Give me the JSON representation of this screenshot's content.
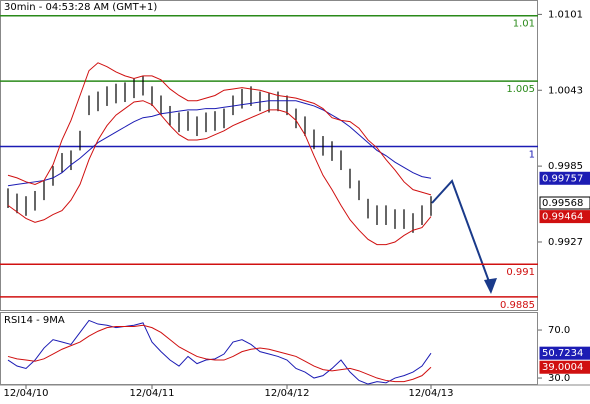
{
  "chart_data": [
    {
      "type": "hilo",
      "title": "30min - 04:53:28 AM (GMT+1)",
      "bar_color": "#000000",
      "ylim": [
        0.9875,
        1.0112
      ],
      "yticks": [
        1.0101,
        1.0043,
        0.9985,
        0.9927
      ],
      "high": [
        0.9968,
        0.9964,
        0.9962,
        0.9966,
        0.9974,
        0.9985,
        0.9995,
        0.9997,
        1.0012,
        1.0039,
        1.0042,
        1.0046,
        1.0048,
        1.0049,
        1.0052,
        1.0054,
        1.0046,
        1.0039,
        1.0031,
        1.0026,
        1.0027,
        1.0023,
        1.0026,
        1.0027,
        1.0029,
        1.0039,
        1.0044,
        1.0046,
        1.0042,
        1.0041,
        1.0042,
        1.0039,
        1.0029,
        1.0023,
        1.0013,
        1.0008,
        1.0004,
        0.9997,
        0.9983,
        0.9974,
        0.996,
        0.9955,
        0.9955,
        0.9952,
        0.9952,
        0.9949,
        0.9955,
        0.9962
      ],
      "low": [
        0.9953,
        0.9949,
        0.9947,
        0.9951,
        0.9959,
        0.997,
        0.998,
        0.9982,
        0.9997,
        1.0024,
        1.0027,
        1.0031,
        1.0033,
        1.0034,
        1.0037,
        1.0039,
        1.0031,
        1.0024,
        1.0016,
        1.0011,
        1.0012,
        1.0008,
        1.0011,
        1.0012,
        1.0014,
        1.0024,
        1.0029,
        1.0031,
        1.0027,
        1.0026,
        1.0027,
        1.0024,
        1.0014,
        1.0008,
        0.9998,
        0.9993,
        0.9989,
        0.9982,
        0.9968,
        0.9959,
        0.9945,
        0.994,
        0.994,
        0.9937,
        0.9937,
        0.9934,
        0.994,
        0.9947
      ],
      "last": 0.99568,
      "overlays": [
        {
          "color": "#1c1cb4",
          "label_fill": "#1c1cb4",
          "values": [
            0.997,
            0.9971,
            0.9972,
            0.9973,
            0.9974,
            0.9976,
            0.998,
            0.9986,
            0.9991,
            0.9997,
            1.0003,
            1.0007,
            1.0011,
            1.0015,
            1.0019,
            1.0022,
            1.0023,
            1.0025,
            1.0026,
            1.0027,
            1.0028,
            1.0028,
            1.0029,
            1.0029,
            1.003,
            1.0031,
            1.0032,
            1.0033,
            1.0034,
            1.0035,
            1.0035,
            1.0035,
            1.0035,
            1.0033,
            1.0031,
            1.0028,
            1.0024,
            1.002,
            1.0015,
            1.0009,
            1.0003,
            0.9997,
            0.9993,
            0.9988,
            0.9984,
            0.998,
            0.9977,
            0.99757
          ]
        },
        {
          "color": "#d01010",
          "values": [
            0.9978,
            0.9976,
            0.9973,
            0.9971,
            0.9974,
            0.9986,
            1.0005,
            1.002,
            1.0039,
            1.0058,
            1.0064,
            1.0061,
            1.0057,
            1.0054,
            1.0052,
            1.0054,
            1.0054,
            1.0051,
            1.0044,
            1.0039,
            1.0035,
            1.0035,
            1.0037,
            1.0039,
            1.0043,
            1.0044,
            1.0045,
            1.0044,
            1.0043,
            1.0041,
            1.0039,
            1.0038,
            1.0037,
            1.0035,
            1.0033,
            1.0029,
            1.0022,
            1.002,
            1.0019,
            1.0014,
            1.0005,
            0.9999,
            0.999,
            0.9982,
            0.9973,
            0.9967,
            0.9965,
            0.9963
          ]
        },
        {
          "color": "#d01010",
          "label_fill": "#d01010",
          "values": [
            0.9955,
            0.995,
            0.9945,
            0.9942,
            0.9944,
            0.9948,
            0.9951,
            0.9959,
            0.9971,
            0.999,
            1.0005,
            1.0016,
            1.0024,
            1.0029,
            1.0034,
            1.0035,
            1.0032,
            1.0024,
            1.0016,
            1.0009,
            1.0005,
            1.0005,
            1.0006,
            1.0009,
            1.0012,
            1.0016,
            1.0019,
            1.0022,
            1.0025,
            1.0028,
            1.0028,
            1.0026,
            1.002,
            1.0009,
            0.9993,
            0.9978,
            0.9967,
            0.9955,
            0.9944,
            0.9936,
            0.9929,
            0.9925,
            0.9925,
            0.9927,
            0.9932,
            0.9936,
            0.9938,
            0.99464
          ]
        }
      ],
      "levels": [
        {
          "value": 1.01,
          "color": "#2a8a1a"
        },
        {
          "value": 1.005,
          "color": "#2a8a1a"
        },
        {
          "value": 1,
          "color": "#1c1cb4"
        },
        {
          "value": 0.991,
          "color": "#d01010"
        },
        {
          "value": 0.9885,
          "color": "#d01010"
        }
      ]
    },
    {
      "type": "line",
      "title": "RSI14 - 9MA",
      "ylim": [
        24.2,
        84.2
      ],
      "yticks": [
        {
          "value": 70,
          "label": "70.0"
        },
        {
          "value": 30,
          "label": "30.0"
        }
      ],
      "categories": [
        null,
        null,
        "12/04/10",
        null,
        null,
        null,
        null,
        null,
        null,
        null,
        null,
        null,
        null,
        null,
        null,
        null,
        "12/04/11",
        null,
        null,
        null,
        null,
        null,
        null,
        null,
        null,
        null,
        null,
        null,
        null,
        null,
        null,
        "12/04/12",
        null,
        null,
        null,
        null,
        null,
        null,
        null,
        null,
        null,
        null,
        null,
        null,
        null,
        null,
        null,
        "12/04/13"
      ],
      "series": [
        {
          "color": "#1c1cb4",
          "values": [
            45,
            40,
            38,
            45,
            55,
            62,
            60,
            58,
            68,
            78,
            75,
            74,
            72,
            73,
            74,
            76,
            60,
            52,
            45,
            40,
            48,
            42,
            45,
            46,
            50,
            60,
            62,
            58,
            52,
            50,
            48,
            45,
            38,
            35,
            30,
            32,
            38,
            45,
            35,
            28,
            25,
            27,
            26,
            30,
            32,
            35,
            40,
            50.7234
          ]
        },
        {
          "color": "#d01010",
          "values": [
            48,
            46,
            45,
            44,
            46,
            50,
            54,
            57,
            60,
            65,
            69,
            72,
            73,
            73,
            73,
            74,
            72,
            68,
            62,
            56,
            52,
            48,
            46,
            45,
            45,
            48,
            52,
            54,
            55,
            54,
            52,
            50,
            48,
            44,
            40,
            37,
            36,
            37,
            38,
            36,
            33,
            30,
            28,
            27,
            27,
            29,
            32,
            39.0004
          ]
        }
      ]
    }
  ]
}
